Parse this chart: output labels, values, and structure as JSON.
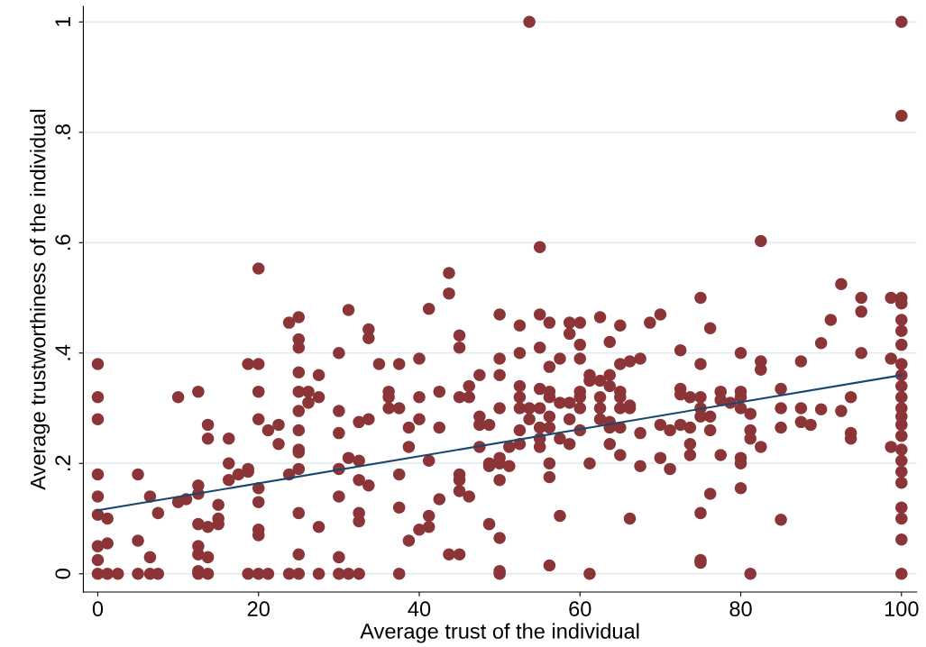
{
  "chart_data": {
    "type": "scatter",
    "xlabel": "Average trust of the individual",
    "ylabel": "Average trustworthiness of the individual",
    "xlim": [
      -1.8,
      101.9
    ],
    "ylim": [
      -0.033,
      1.028
    ],
    "xticks": [
      0,
      20,
      40,
      60,
      80,
      100
    ],
    "yticks": [
      {
        "value": 0,
        "label": "0"
      },
      {
        "value": 0.2,
        "label": ".2"
      },
      {
        "value": 0.4,
        "label": ".4"
      },
      {
        "value": 0.6,
        "label": ".6"
      },
      {
        "value": 0.8,
        "label": ".8"
      },
      {
        "value": 1,
        "label": "1"
      }
    ],
    "grid": "y",
    "legend": false,
    "marker": "circle",
    "series": [
      {
        "color": "#8b3538",
        "x": [
          0,
          0,
          0,
          0,
          0,
          0,
          0,
          0,
          0,
          1.2,
          1.2,
          1.2,
          2.5,
          5,
          5,
          5,
          6.5,
          6.5,
          6.5,
          7.5,
          7.5,
          10,
          10,
          11,
          12.5,
          12.5,
          12.5,
          12.5,
          12.5,
          12.5,
          12.5,
          12.5,
          13.7,
          13.7,
          13.7,
          13.7,
          13.7,
          15,
          15,
          15,
          16.3,
          16.3,
          16.3,
          17.5,
          18.7,
          18.7,
          18.7,
          18.7,
          20,
          20,
          20,
          20,
          20,
          20,
          20,
          20,
          20,
          21.2,
          21.2,
          22.5,
          22.5,
          23.8,
          23.8,
          23.8,
          25,
          25,
          25,
          25,
          25,
          25,
          25,
          25,
          25,
          25,
          25,
          25,
          25,
          26.2,
          26.2,
          27.5,
          27.5,
          27.5,
          27.5,
          30,
          30,
          30,
          30,
          30,
          30,
          30,
          31.2,
          31.2,
          31.2,
          32.5,
          32.5,
          32.5,
          32.5,
          32.5,
          32.5,
          33.7,
          33.7,
          33.7,
          33.7,
          35,
          36.2,
          36.2,
          36.2,
          37.5,
          37.5,
          37.5,
          37.5,
          37.5,
          38.7,
          38.7,
          38.7,
          40,
          40,
          40,
          40,
          41.2,
          41.2,
          41.2,
          41.2,
          42.5,
          42.5,
          42.5,
          43.7,
          43.7,
          43.7,
          45,
          45,
          45,
          45,
          45,
          45,
          45,
          46.2,
          46.2,
          46.2,
          47.5,
          47.5,
          47.5,
          47.5,
          48.7,
          48.7,
          48.7,
          48.7,
          50,
          50,
          50,
          50,
          50,
          50,
          50,
          50,
          50,
          50,
          51.2,
          51.2,
          52.5,
          52.5,
          52.5,
          52.5,
          52.5,
          52.5,
          52.5,
          53.7,
          53.7,
          53.7,
          55,
          55,
          55,
          55,
          55,
          55,
          55,
          55,
          56.2,
          56.2,
          56.2,
          56.2,
          56.2,
          56.2,
          56.2,
          56.2,
          56.2,
          57.5,
          57.5,
          57.5,
          57.5,
          58.7,
          58.7,
          58.7,
          58.7,
          58.7,
          60,
          60,
          60,
          60,
          60,
          60,
          60,
          61.2,
          61.2,
          61.2,
          61.2,
          62.5,
          62.5,
          62.5,
          62.5,
          62.5,
          63.7,
          63.7,
          63.7,
          63.7,
          63.7,
          63.7,
          65,
          65,
          65,
          65,
          65,
          65,
          65,
          66.2,
          66.2,
          66.2,
          66.2,
          67.5,
          67.5,
          67.5,
          68.7,
          70,
          70,
          70,
          71.2,
          71.2,
          72.5,
          72.5,
          72.5,
          72.5,
          73.7,
          73.7,
          73.7,
          73.7,
          75,
          75,
          75,
          75,
          75,
          75,
          75,
          75,
          76.2,
          76.2,
          76.2,
          76.2,
          77.5,
          77.5,
          77.5,
          78.7,
          80,
          80,
          80,
          80,
          80,
          80,
          80,
          81.2,
          81.2,
          81.2,
          81.2,
          82.5,
          82.5,
          82.5,
          82.5,
          85,
          85,
          85,
          85,
          87.5,
          87.5,
          87.5,
          88.7,
          90,
          90,
          91.2,
          92.5,
          92.5,
          93.7,
          93.7,
          93.7,
          95,
          95,
          95,
          98.7,
          98.7,
          98.7,
          100,
          100,
          100,
          100,
          100,
          100,
          100,
          100,
          100,
          100,
          100,
          100,
          100,
          100,
          100,
          100,
          100,
          100,
          100,
          100,
          100,
          100,
          100
        ],
        "values": [
          0.38,
          0.32,
          0.28,
          0.18,
          0.14,
          0.107,
          0.05,
          0.025,
          0,
          0.1,
          0.055,
          0,
          0,
          0.18,
          0.06,
          0,
          0.14,
          0.03,
          0,
          0.11,
          0,
          0.32,
          0.13,
          0.135,
          0.33,
          0.16,
          0.145,
          0.09,
          0.05,
          0.035,
          0.005,
          0,
          0.27,
          0.245,
          0.085,
          0.03,
          0,
          0.125,
          0.1,
          0.09,
          0.245,
          0.2,
          0.17,
          0.18,
          0.38,
          0.19,
          0.185,
          0,
          0.553,
          0.38,
          0.33,
          0.28,
          0.155,
          0.13,
          0.08,
          0.07,
          0,
          0.26,
          0,
          0.27,
          0.235,
          0.455,
          0.18,
          0,
          0.465,
          0.425,
          0.41,
          0.365,
          0.33,
          0.295,
          0.26,
          0.225,
          0.22,
          0.19,
          0.11,
          0.035,
          0,
          0.33,
          0.31,
          0.36,
          0.32,
          0.085,
          0,
          0.4,
          0.295,
          0.255,
          0.19,
          0.14,
          0.03,
          0,
          0.478,
          0.21,
          0,
          0.275,
          0.205,
          0.17,
          0.11,
          0.095,
          0,
          0.443,
          0.427,
          0.28,
          0.16,
          0.38,
          0.33,
          0.32,
          0.3,
          0.38,
          0.3,
          0.18,
          0.12,
          0,
          0.265,
          0.23,
          0.06,
          0.39,
          0.32,
          0.28,
          0.08,
          0.48,
          0.205,
          0.105,
          0.085,
          0.33,
          0.265,
          0.135,
          0.545,
          0.508,
          0.035,
          0.432,
          0.41,
          0.32,
          0.18,
          0.17,
          0.15,
          0.035,
          0.34,
          0.32,
          0.14,
          0.36,
          0.285,
          0.27,
          0.23,
          0.27,
          0.2,
          0.195,
          0.09,
          0.47,
          0.39,
          0.36,
          0.3,
          0.21,
          0.2,
          0.17,
          0.065,
          0.005,
          0,
          0.23,
          0.195,
          0.45,
          0.4,
          0.34,
          0.32,
          0.3,
          0.26,
          0.235,
          1.0,
          0.3,
          0.28,
          0.592,
          0.47,
          0.41,
          0.335,
          0.3,
          0.265,
          0.245,
          0.23,
          0.455,
          0.375,
          0.33,
          0.32,
          0.285,
          0.265,
          0.2,
          0.175,
          0.015,
          0.39,
          0.31,
          0.245,
          0.105,
          0.455,
          0.435,
          0.31,
          0.28,
          0.235,
          0.455,
          0.415,
          0.39,
          0.33,
          0.32,
          0.3,
          0.26,
          0.36,
          0.35,
          0.2,
          0,
          0.465,
          0.35,
          0.32,
          0.3,
          0.28,
          0.42,
          0.36,
          0.34,
          0.275,
          0.265,
          0.235,
          0.45,
          0.38,
          0.33,
          0.32,
          0.3,
          0.265,
          0.215,
          0.385,
          0.305,
          0.3,
          0.1,
          0.39,
          0.255,
          0.195,
          0.455,
          0.47,
          0.27,
          0.21,
          0.26,
          0.19,
          0.405,
          0.335,
          0.325,
          0.27,
          0.32,
          0.265,
          0.235,
          0.215,
          0.5,
          0.38,
          0.32,
          0.3,
          0.285,
          0.11,
          0.025,
          0.02,
          0.445,
          0.285,
          0.26,
          0.145,
          0.33,
          0.315,
          0.215,
          0.31,
          0.4,
          0.33,
          0.32,
          0.3,
          0.21,
          0.2,
          0.155,
          0.29,
          0.26,
          0.245,
          0,
          0.603,
          0.385,
          0.37,
          0.23,
          0.335,
          0.3,
          0.265,
          0.098,
          0.385,
          0.3,
          0.275,
          0.27,
          0.418,
          0.298,
          0.46,
          0.525,
          0.295,
          0.32,
          0.255,
          0.245,
          0.5,
          0.475,
          0.4,
          0.5,
          0.39,
          0.23,
          1.0,
          0.83,
          0.5,
          0.49,
          0.46,
          0.44,
          0.415,
          0.38,
          0.36,
          0.34,
          0.32,
          0.3,
          0.285,
          0.27,
          0.25,
          0.225,
          0.205,
          0.185,
          0.165,
          0.12,
          0.1,
          0.062,
          0
        ]
      },
      {
        "type": "line",
        "color": "#1a476f",
        "marker": "none",
        "x": [
          0,
          100
        ],
        "values": [
          0.115,
          0.36
        ]
      }
    ]
  }
}
